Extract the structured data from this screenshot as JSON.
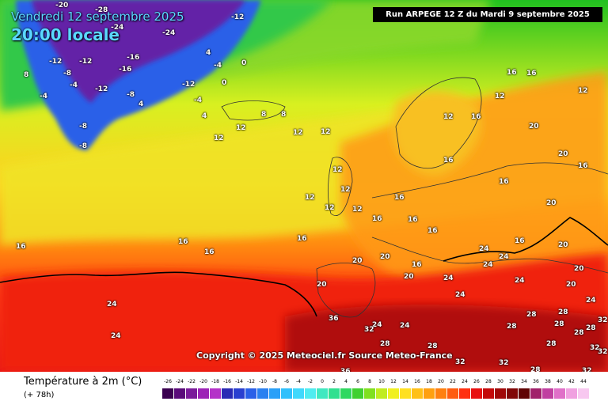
{
  "header": {
    "date": "Vendredi 12 septembre 2025",
    "time": "20:00 locale",
    "run": "Run ARPEGE 12 Z du Mardi 9 septembre 2025"
  },
  "copyright": "Copyright © 2025 Meteociel.fr Source Meteo-France",
  "legend": {
    "title": "Température à 2m (°C)",
    "subtitle": "(+ 78h)",
    "ticks": [
      "-26",
      "-24",
      "-22",
      "-20",
      "-18",
      "-16",
      "-14",
      "-12",
      "-10",
      "-8",
      "-6",
      "-4",
      "-2",
      "0",
      "2",
      "4",
      "6",
      "8",
      "10",
      "12",
      "14",
      "16",
      "18",
      "20",
      "22",
      "24",
      "26",
      "28",
      "30",
      "32",
      "34",
      "36",
      "38",
      "40",
      "42",
      "44"
    ],
    "colors": [
      "#3a0050",
      "#5a0a7a",
      "#7a1a9a",
      "#9c22b6",
      "#b432c8",
      "#2a2ab4",
      "#2a40d0",
      "#2a60e8",
      "#2a80f0",
      "#2aa0f8",
      "#30c0fc",
      "#40d8fc",
      "#50ecf0",
      "#40e8c0",
      "#30e090",
      "#30d860",
      "#40d030",
      "#80e020",
      "#c0ec20",
      "#f0f020",
      "#ffe020",
      "#ffc018",
      "#ffa010",
      "#ff8010",
      "#ff5c10",
      "#ff3010",
      "#e81010",
      "#c40a0a",
      "#a00808",
      "#800606",
      "#600404",
      "#a0206a",
      "#c040a0",
      "#e070c8",
      "#f0a0e0",
      "#f8c8f0"
    ]
  },
  "temperature_labels": [
    {
      "v": "-20"
    },
    {
      "v": "-28"
    },
    {
      "v": "-24"
    },
    {
      "v": "-24"
    },
    {
      "v": "-12"
    },
    {
      "v": "-16"
    },
    {
      "v": "-12"
    },
    {
      "v": "-12"
    },
    {
      "v": "-8"
    },
    {
      "v": "-4"
    },
    {
      "v": "-8"
    },
    {
      "v": "-8"
    },
    {
      "v": "-16"
    },
    {
      "v": "-12"
    },
    {
      "v": "-8"
    },
    {
      "v": "-4"
    },
    {
      "v": "-12"
    },
    {
      "v": "-4"
    },
    {
      "v": "-4"
    },
    {
      "v": "4"
    },
    {
      "v": "0"
    },
    {
      "v": "0"
    },
    {
      "v": "4"
    },
    {
      "v": "4"
    },
    {
      "v": "8"
    },
    {
      "v": "8"
    },
    {
      "v": "8"
    },
    {
      "v": "12"
    },
    {
      "v": "12"
    },
    {
      "v": "12"
    },
    {
      "v": "12"
    },
    {
      "v": "12"
    },
    {
      "v": "16"
    },
    {
      "v": "16"
    },
    {
      "v": "16"
    },
    {
      "v": "16"
    },
    {
      "v": "12"
    },
    {
      "v": "12"
    },
    {
      "v": "12"
    },
    {
      "v": "12"
    },
    {
      "v": "16"
    },
    {
      "v": "16"
    },
    {
      "v": "16"
    },
    {
      "v": "16"
    },
    {
      "v": "20"
    },
    {
      "v": "20"
    },
    {
      "v": "16"
    },
    {
      "v": "16"
    },
    {
      "v": "20"
    },
    {
      "v": "24"
    },
    {
      "v": "20"
    },
    {
      "v": "24"
    },
    {
      "v": "24"
    },
    {
      "v": "24"
    },
    {
      "v": "24"
    },
    {
      "v": "24"
    },
    {
      "v": "24"
    },
    {
      "v": "28"
    },
    {
      "v": "28"
    },
    {
      "v": "28"
    },
    {
      "v": "28"
    },
    {
      "v": "32"
    },
    {
      "v": "32"
    },
    {
      "v": "36"
    },
    {
      "v": "36"
    },
    {
      "v": "32"
    },
    {
      "v": "28"
    },
    {
      "v": "28"
    },
    {
      "v": "28"
    },
    {
      "v": "32"
    },
    {
      "v": "32"
    },
    {
      "v": "28"
    },
    {
      "v": "20"
    },
    {
      "v": "16"
    },
    {
      "v": "12"
    },
    {
      "v": "12"
    },
    {
      "v": "16"
    },
    {
      "v": "16"
    },
    {
      "v": "20"
    },
    {
      "v": "20"
    },
    {
      "v": "20"
    },
    {
      "v": "24"
    },
    {
      "v": "24"
    },
    {
      "v": "24"
    },
    {
      "v": "12"
    },
    {
      "v": "16"
    },
    {
      "v": "20"
    },
    {
      "v": "16"
    },
    {
      "v": "16"
    },
    {
      "v": "20"
    },
    {
      "v": "24"
    },
    {
      "v": "28"
    },
    {
      "v": "28"
    },
    {
      "v": "32"
    },
    {
      "v": "32"
    }
  ]
}
